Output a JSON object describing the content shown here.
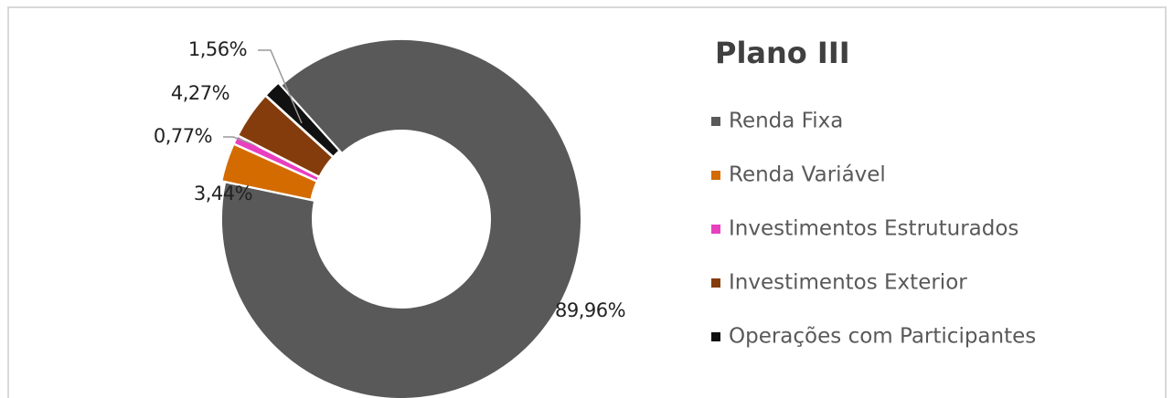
{
  "chart_data": {
    "type": "donut",
    "title": "Plano III",
    "categories": [
      "Renda Fixa",
      "Renda Variável",
      "Investimentos Estruturados",
      "Investimentos Exterior",
      "Operações com Participantes"
    ],
    "values": [
      89.96,
      3.44,
      0.77,
      4.27,
      1.56
    ],
    "value_labels": [
      "89,96%",
      "3,44%",
      "0,77%",
      "4,27%",
      "1,56%"
    ],
    "colors": [
      "#595959",
      "#d36b00",
      "#e83fbf",
      "#843c0c",
      "#111111"
    ],
    "legend": "right"
  }
}
